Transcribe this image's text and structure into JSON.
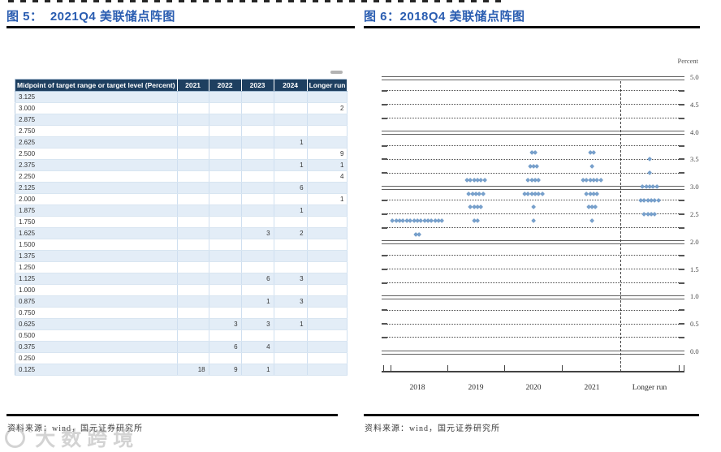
{
  "figure5": {
    "title_full": "图 5：  2021Q4 美联储点阵图",
    "source": "资料来源：wind，国元证券研究所",
    "table": {
      "header": [
        "Midpoint of target range or target level (Percent)",
        "2021",
        "2022",
        "2023",
        "2024",
        "Longer run"
      ],
      "rows": [
        {
          "label": "3.125",
          "values": [
            "",
            "",
            "",
            "",
            ""
          ]
        },
        {
          "label": "3.000",
          "values": [
            "",
            "",
            "",
            "",
            "2"
          ]
        },
        {
          "label": "2.875",
          "values": [
            "",
            "",
            "",
            "",
            ""
          ]
        },
        {
          "label": "2.750",
          "values": [
            "",
            "",
            "",
            "",
            ""
          ]
        },
        {
          "label": "2.625",
          "values": [
            "",
            "",
            "",
            "1",
            ""
          ]
        },
        {
          "label": "2.500",
          "values": [
            "",
            "",
            "",
            "",
            "9"
          ]
        },
        {
          "label": "2.375",
          "values": [
            "",
            "",
            "",
            "1",
            "1"
          ]
        },
        {
          "label": "2.250",
          "values": [
            "",
            "",
            "",
            "",
            "4"
          ]
        },
        {
          "label": "2.125",
          "values": [
            "",
            "",
            "",
            "6",
            ""
          ]
        },
        {
          "label": "2.000",
          "values": [
            "",
            "",
            "",
            "",
            "1"
          ]
        },
        {
          "label": "1.875",
          "values": [
            "",
            "",
            "",
            "1",
            ""
          ]
        },
        {
          "label": "1.750",
          "values": [
            "",
            "",
            "",
            "",
            ""
          ]
        },
        {
          "label": "1.625",
          "values": [
            "",
            "",
            "3",
            "2",
            ""
          ]
        },
        {
          "label": "1.500",
          "values": [
            "",
            "",
            "",
            "",
            ""
          ]
        },
        {
          "label": "1.375",
          "values": [
            "",
            "",
            "",
            "",
            ""
          ]
        },
        {
          "label": "1.250",
          "values": [
            "",
            "",
            "",
            "",
            ""
          ]
        },
        {
          "label": "1.125",
          "values": [
            "",
            "",
            "6",
            "3",
            ""
          ]
        },
        {
          "label": "1.000",
          "values": [
            "",
            "",
            "",
            "",
            ""
          ]
        },
        {
          "label": "0.875",
          "values": [
            "",
            "",
            "1",
            "3",
            ""
          ]
        },
        {
          "label": "0.750",
          "values": [
            "",
            "",
            "",
            "",
            ""
          ]
        },
        {
          "label": "0.625",
          "values": [
            "",
            "3",
            "3",
            "1",
            ""
          ]
        },
        {
          "label": "0.500",
          "values": [
            "",
            "",
            "",
            "",
            ""
          ]
        },
        {
          "label": "0.375",
          "values": [
            "",
            "6",
            "4",
            "",
            ""
          ]
        },
        {
          "label": "0.250",
          "values": [
            "",
            "",
            "",
            "",
            ""
          ]
        },
        {
          "label": "0.125",
          "values": [
            "18",
            "9",
            "1",
            "",
            ""
          ]
        }
      ]
    }
  },
  "figure6": {
    "title_full": "图 6：2018Q4 美联储点阵图",
    "source": "资料来源：wind，国元证券研究所"
  },
  "chart_data": {
    "type": "scatter",
    "title": "2018Q4 美联储点阵图",
    "ylabel": "Percent",
    "ylim": [
      0,
      5
    ],
    "grid_step": 0.25,
    "solid_lines_at_integers": true,
    "yticks": [
      "5.0",
      "4.5",
      "4.0",
      "3.5",
      "3.0",
      "2.5",
      "2.0",
      "1.5",
      "1.0",
      "0.5",
      "0.0"
    ],
    "categories": [
      "2018",
      "2019",
      "2020",
      "2021",
      "Longer run"
    ],
    "series": [
      {
        "name": "2018",
        "dots": [
          {
            "v": 2.375,
            "n": 15
          },
          {
            "v": 2.125,
            "n": 2
          }
        ]
      },
      {
        "name": "2019",
        "dots": [
          {
            "v": 3.125,
            "n": 6
          },
          {
            "v": 2.875,
            "n": 5
          },
          {
            "v": 2.625,
            "n": 4
          },
          {
            "v": 2.375,
            "n": 2
          }
        ]
      },
      {
        "name": "2020",
        "dots": [
          {
            "v": 3.625,
            "n": 2
          },
          {
            "v": 3.375,
            "n": 3
          },
          {
            "v": 3.125,
            "n": 4
          },
          {
            "v": 2.875,
            "n": 6
          },
          {
            "v": 2.625,
            "n": 1
          },
          {
            "v": 2.375,
            "n": 1
          }
        ]
      },
      {
        "name": "2021",
        "dots": [
          {
            "v": 3.625,
            "n": 2
          },
          {
            "v": 3.375,
            "n": 1
          },
          {
            "v": 3.125,
            "n": 6
          },
          {
            "v": 2.875,
            "n": 4
          },
          {
            "v": 2.625,
            "n": 3
          },
          {
            "v": 2.375,
            "n": 1
          }
        ]
      },
      {
        "name": "Longer run",
        "dots": [
          {
            "v": 3.5,
            "n": 1
          },
          {
            "v": 3.25,
            "n": 1
          },
          {
            "v": 3.0,
            "n": 5
          },
          {
            "v": 2.75,
            "n": 6
          },
          {
            "v": 2.5,
            "n": 4
          }
        ]
      }
    ],
    "dot_color": "#7aa2cd",
    "accent_title_color": "#2a5db1",
    "table_header_color": "#1e3f60",
    "table_stripe_color": "#e3edf7"
  },
  "watermark": {
    "text": "大数跨境"
  }
}
